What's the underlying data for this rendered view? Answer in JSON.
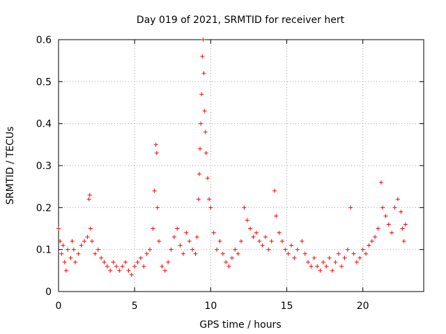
{
  "chart_data": {
    "type": "scatter",
    "title": "Day 019 of 2021, SRMTID for receiver hert",
    "xlabel": "GPS time / hours",
    "ylabel": "SRMTID / TECUs",
    "xlim": [
      0,
      24
    ],
    "ylim": [
      0,
      0.6
    ],
    "xticks": [
      0,
      5,
      10,
      15,
      20
    ],
    "yticks": [
      0,
      0.1,
      0.2,
      0.3,
      0.4,
      0.5,
      0.6
    ],
    "grid": true,
    "marker": "+",
    "color": "#ff0000",
    "series": [
      {
        "name": "SRMTID",
        "points": [
          [
            0.0,
            0.15
          ],
          [
            0.1,
            0.12
          ],
          [
            0.2,
            0.09
          ],
          [
            0.3,
            0.11
          ],
          [
            0.4,
            0.07
          ],
          [
            0.5,
            0.05
          ],
          [
            0.6,
            0.1
          ],
          [
            0.8,
            0.08
          ],
          [
            0.9,
            0.12
          ],
          [
            1.0,
            0.1
          ],
          [
            1.1,
            0.07
          ],
          [
            1.3,
            0.09
          ],
          [
            1.5,
            0.11
          ],
          [
            1.7,
            0.12
          ],
          [
            1.9,
            0.13
          ],
          [
            2.0,
            0.22
          ],
          [
            2.05,
            0.23
          ],
          [
            2.1,
            0.15
          ],
          [
            2.2,
            0.12
          ],
          [
            2.4,
            0.09
          ],
          [
            2.6,
            0.1
          ],
          [
            2.8,
            0.08
          ],
          [
            3.0,
            0.07
          ],
          [
            3.2,
            0.06
          ],
          [
            3.4,
            0.05
          ],
          [
            3.6,
            0.07
          ],
          [
            3.8,
            0.06
          ],
          [
            4.0,
            0.05
          ],
          [
            4.2,
            0.06
          ],
          [
            4.4,
            0.07
          ],
          [
            4.6,
            0.05
          ],
          [
            4.8,
            0.04
          ],
          [
            5.0,
            0.06
          ],
          [
            5.2,
            0.07
          ],
          [
            5.4,
            0.08
          ],
          [
            5.6,
            0.06
          ],
          [
            5.8,
            0.09
          ],
          [
            6.0,
            0.1
          ],
          [
            6.2,
            0.15
          ],
          [
            6.3,
            0.24
          ],
          [
            6.4,
            0.35
          ],
          [
            6.45,
            0.33
          ],
          [
            6.5,
            0.2
          ],
          [
            6.6,
            0.12
          ],
          [
            6.8,
            0.06
          ],
          [
            7.0,
            0.05
          ],
          [
            7.2,
            0.07
          ],
          [
            7.4,
            0.1
          ],
          [
            7.6,
            0.13
          ],
          [
            7.8,
            0.15
          ],
          [
            8.0,
            0.11
          ],
          [
            8.2,
            0.09
          ],
          [
            8.4,
            0.14
          ],
          [
            8.6,
            0.12
          ],
          [
            8.8,
            0.1
          ],
          [
            9.0,
            0.09
          ],
          [
            9.1,
            0.13
          ],
          [
            9.2,
            0.22
          ],
          [
            9.25,
            0.28
          ],
          [
            9.3,
            0.34
          ],
          [
            9.35,
            0.4
          ],
          [
            9.4,
            0.47
          ],
          [
            9.45,
            0.56
          ],
          [
            9.5,
            0.6
          ],
          [
            9.55,
            0.52
          ],
          [
            9.6,
            0.43
          ],
          [
            9.65,
            0.38
          ],
          [
            9.7,
            0.33
          ],
          [
            9.8,
            0.27
          ],
          [
            9.9,
            0.22
          ],
          [
            10.0,
            0.2
          ],
          [
            10.2,
            0.14
          ],
          [
            10.4,
            0.1
          ],
          [
            10.6,
            0.12
          ],
          [
            10.8,
            0.09
          ],
          [
            11.0,
            0.07
          ],
          [
            11.2,
            0.06
          ],
          [
            11.4,
            0.08
          ],
          [
            11.6,
            0.1
          ],
          [
            11.8,
            0.09
          ],
          [
            12.0,
            0.12
          ],
          [
            12.2,
            0.2
          ],
          [
            12.4,
            0.17
          ],
          [
            12.6,
            0.15
          ],
          [
            12.8,
            0.13
          ],
          [
            13.0,
            0.14
          ],
          [
            13.2,
            0.12
          ],
          [
            13.4,
            0.11
          ],
          [
            13.6,
            0.13
          ],
          [
            13.8,
            0.1
          ],
          [
            14.0,
            0.12
          ],
          [
            14.2,
            0.24
          ],
          [
            14.3,
            0.18
          ],
          [
            14.5,
            0.14
          ],
          [
            14.7,
            0.12
          ],
          [
            14.9,
            0.1
          ],
          [
            15.1,
            0.09
          ],
          [
            15.3,
            0.11
          ],
          [
            15.5,
            0.08
          ],
          [
            15.7,
            0.1
          ],
          [
            16.0,
            0.12
          ],
          [
            16.2,
            0.09
          ],
          [
            16.4,
            0.07
          ],
          [
            16.6,
            0.06
          ],
          [
            16.8,
            0.08
          ],
          [
            17.0,
            0.06
          ],
          [
            17.2,
            0.05
          ],
          [
            17.4,
            0.07
          ],
          [
            17.6,
            0.06
          ],
          [
            17.8,
            0.08
          ],
          [
            18.0,
            0.05
          ],
          [
            18.2,
            0.07
          ],
          [
            18.4,
            0.09
          ],
          [
            18.6,
            0.06
          ],
          [
            18.8,
            0.08
          ],
          [
            19.0,
            0.1
          ],
          [
            19.2,
            0.2
          ],
          [
            19.4,
            0.09
          ],
          [
            19.6,
            0.07
          ],
          [
            19.8,
            0.08
          ],
          [
            20.0,
            0.1
          ],
          [
            20.2,
            0.09
          ],
          [
            20.4,
            0.11
          ],
          [
            20.6,
            0.12
          ],
          [
            20.8,
            0.13
          ],
          [
            21.0,
            0.15
          ],
          [
            21.2,
            0.26
          ],
          [
            21.3,
            0.2
          ],
          [
            21.5,
            0.18
          ],
          [
            21.7,
            0.16
          ],
          [
            21.9,
            0.14
          ],
          [
            22.1,
            0.2
          ],
          [
            22.3,
            0.22
          ],
          [
            22.5,
            0.19
          ],
          [
            22.6,
            0.15
          ],
          [
            22.7,
            0.12
          ],
          [
            22.8,
            0.16
          ]
        ]
      }
    ]
  }
}
